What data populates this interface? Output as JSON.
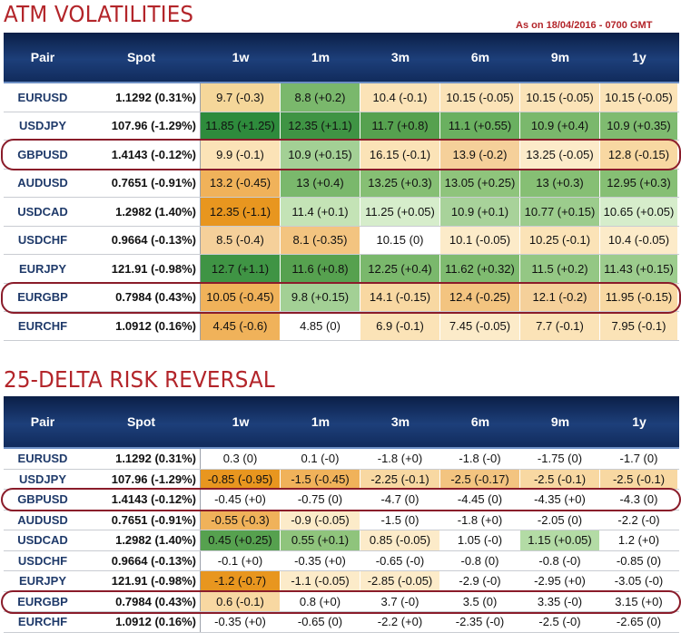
{
  "chart_data": [
    {
      "type": "table",
      "title": "ATM VOLATILITIES",
      "subtitle": "As on 18/04/2016 - 0700 GMT",
      "columns": [
        "Pair",
        "Spot",
        "1w",
        "1m",
        "3m",
        "6m",
        "9m",
        "1y"
      ],
      "highlighted_rows": [
        "GBPUSD",
        "EURGBP"
      ],
      "rows": [
        {
          "pair": "EURUSD",
          "spot": "1.1292 (0.31%)",
          "cells": [
            {
              "text": "9.7 (-0.3)",
              "color": "#f5d79a"
            },
            {
              "text": "8.8 (+0.2)",
              "color": "#7ab86c"
            },
            {
              "text": "10.4 (-0.1)",
              "color": "#fbe3b7"
            },
            {
              "text": "10.15 (-0.05)",
              "color": "#fbe3b7"
            },
            {
              "text": "10.15 (-0.05)",
              "color": "#fbe3b7"
            },
            {
              "text": "10.15 (-0.05)",
              "color": "#fbe3b7"
            }
          ]
        },
        {
          "pair": "USDJPY",
          "spot": "107.96 (-1.29%)",
          "cells": [
            {
              "text": "11.85 (+1.25)",
              "color": "#2e8b3c"
            },
            {
              "text": "12.35 (+1.1)",
              "color": "#3f9444"
            },
            {
              "text": "11.7 (+0.8)",
              "color": "#56a14f"
            },
            {
              "text": "11.1 (+0.55)",
              "color": "#6ab060"
            },
            {
              "text": "10.9 (+0.4)",
              "color": "#7ab86c"
            },
            {
              "text": "10.9 (+0.35)",
              "color": "#7fbb70"
            }
          ]
        },
        {
          "pair": "GBPUSD",
          "spot": "1.4143 (-0.12%)",
          "cells": [
            {
              "text": "9.9 (-0.1)",
              "color": "#fbe3b7"
            },
            {
              "text": "10.9 (+0.15)",
              "color": "#a3d095"
            },
            {
              "text": "16.15 (-0.1)",
              "color": "#fbe3b7"
            },
            {
              "text": "13.9 (-0.2)",
              "color": "#f5d09a"
            },
            {
              "text": "13.25 (-0.05)",
              "color": "#fcebc9"
            },
            {
              "text": "12.8 (-0.15)",
              "color": "#f8d8a2"
            }
          ]
        },
        {
          "pair": "AUDUSD",
          "spot": "0.7651 (-0.91%)",
          "cells": [
            {
              "text": "13.2 (-0.45)",
              "color": "#f0b25a"
            },
            {
              "text": "13 (+0.4)",
              "color": "#7ab86c"
            },
            {
              "text": "13.25 (+0.3)",
              "color": "#86bf74"
            },
            {
              "text": "13.05 (+0.25)",
              "color": "#8fc47c"
            },
            {
              "text": "13 (+0.3)",
              "color": "#86bf74"
            },
            {
              "text": "12.95 (+0.3)",
              "color": "#86bf74"
            }
          ]
        },
        {
          "pair": "USDCAD",
          "spot": "1.2982 (1.40%)",
          "cells": [
            {
              "text": "12.35 (-1.1)",
              "color": "#e8961f"
            },
            {
              "text": "11.4 (+0.1)",
              "color": "#c4e3b6"
            },
            {
              "text": "11.25 (+0.05)",
              "color": "#d6edcb"
            },
            {
              "text": "10.9 (+0.1)",
              "color": "#a8d29a"
            },
            {
              "text": "10.77 (+0.15)",
              "color": "#9ccc8d"
            },
            {
              "text": "10.65 (+0.05)",
              "color": "#d6edcb"
            }
          ]
        },
        {
          "pair": "USDCHF",
          "spot": "0.9664 (-0.13%)",
          "cells": [
            {
              "text": "8.5 (-0.4)",
              "color": "#f5d09a"
            },
            {
              "text": "8.1 (-0.35)",
              "color": "#f3c480"
            },
            {
              "text": "10.15 (0)",
              "color": "#ffffff"
            },
            {
              "text": "10.1 (-0.05)",
              "color": "#fcebc9"
            },
            {
              "text": "10.25 (-0.1)",
              "color": "#fbe3b7"
            },
            {
              "text": "10.4 (-0.05)",
              "color": "#fcebc9"
            }
          ]
        },
        {
          "pair": "EURJPY",
          "spot": "121.91 (-0.98%)",
          "cells": [
            {
              "text": "12.7 (+1.1)",
              "color": "#3f9444"
            },
            {
              "text": "11.6 (+0.8)",
              "color": "#56a14f"
            },
            {
              "text": "12.25 (+0.4)",
              "color": "#7ab86c"
            },
            {
              "text": "11.62 (+0.32)",
              "color": "#7fbb70"
            },
            {
              "text": "11.5 (+0.2)",
              "color": "#94c784"
            },
            {
              "text": "11.43 (+0.15)",
              "color": "#9ccc8d"
            }
          ]
        },
        {
          "pair": "EURGBP",
          "spot": "0.7984 (0.43%)",
          "cells": [
            {
              "text": "10.05 (-0.45)",
              "color": "#f0b25a"
            },
            {
              "text": "9.8 (+0.15)",
              "color": "#a3d095"
            },
            {
              "text": "14.1 (-0.15)",
              "color": "#f8d8a2"
            },
            {
              "text": "12.4 (-0.25)",
              "color": "#f3c480"
            },
            {
              "text": "12.1 (-0.2)",
              "color": "#f5d09a"
            },
            {
              "text": "11.95 (-0.15)",
              "color": "#f8d8a2"
            }
          ]
        },
        {
          "pair": "EURCHF",
          "spot": "1.0912 (0.16%)",
          "cells": [
            {
              "text": "4.45 (-0.6)",
              "color": "#f0b25a"
            },
            {
              "text": "4.85 (0)",
              "color": "#ffffff"
            },
            {
              "text": "6.9 (-0.1)",
              "color": "#fbe3b7"
            },
            {
              "text": "7.45 (-0.05)",
              "color": "#fcebc9"
            },
            {
              "text": "7.7 (-0.1)",
              "color": "#fbe3b7"
            },
            {
              "text": "7.95 (-0.1)",
              "color": "#fbe3b7"
            }
          ]
        }
      ]
    },
    {
      "type": "table",
      "title": "25-DELTA RISK REVERSAL",
      "columns": [
        "Pair",
        "Spot",
        "1w",
        "1m",
        "3m",
        "6m",
        "9m",
        "1y"
      ],
      "highlighted_rows": [
        "GBPUSD",
        "EURGBP"
      ],
      "rows": [
        {
          "pair": "EURUSD",
          "spot": "1.1292 (0.31%)",
          "cells": [
            {
              "text": "0.3 (0)",
              "color": "#ffffff"
            },
            {
              "text": "0.1 (-0)",
              "color": "#ffffff"
            },
            {
              "text": "-1.8 (+0)",
              "color": "#ffffff"
            },
            {
              "text": "-1.8 (-0)",
              "color": "#ffffff"
            },
            {
              "text": "-1.75 (0)",
              "color": "#ffffff"
            },
            {
              "text": "-1.7 (0)",
              "color": "#ffffff"
            }
          ]
        },
        {
          "pair": "USDJPY",
          "spot": "107.96 (-1.29%)",
          "cells": [
            {
              "text": "-0.85 (-0.95)",
              "color": "#e8961f"
            },
            {
              "text": "-1.5 (-0.45)",
              "color": "#f0b25a"
            },
            {
              "text": "-2.25 (-0.1)",
              "color": "#f8d8a2"
            },
            {
              "text": "-2.5 (-0.17)",
              "color": "#f3c480"
            },
            {
              "text": "-2.5 (-0.1)",
              "color": "#f8d8a2"
            },
            {
              "text": "-2.5 (-0.1)",
              "color": "#f8d8a2"
            }
          ]
        },
        {
          "pair": "GBPUSD",
          "spot": "1.4143 (-0.12%)",
          "cells": [
            {
              "text": "-0.45 (+0)",
              "color": "#ffffff"
            },
            {
              "text": "-0.75 (0)",
              "color": "#ffffff"
            },
            {
              "text": "-4.7 (0)",
              "color": "#ffffff"
            },
            {
              "text": "-4.45 (0)",
              "color": "#ffffff"
            },
            {
              "text": "-4.35 (+0)",
              "color": "#ffffff"
            },
            {
              "text": "-4.3 (0)",
              "color": "#ffffff"
            }
          ]
        },
        {
          "pair": "AUDUSD",
          "spot": "0.7651 (-0.91%)",
          "cells": [
            {
              "text": "-0.55 (-0.3)",
              "color": "#f0b25a"
            },
            {
              "text": "-0.9 (-0.05)",
              "color": "#fcebc9"
            },
            {
              "text": "-1.5 (0)",
              "color": "#ffffff"
            },
            {
              "text": "-1.8 (+0)",
              "color": "#ffffff"
            },
            {
              "text": "-2.05 (0)",
              "color": "#ffffff"
            },
            {
              "text": "-2.2 (-0)",
              "color": "#ffffff"
            }
          ]
        },
        {
          "pair": "USDCAD",
          "spot": "1.2982 (1.40%)",
          "cells": [
            {
              "text": "0.45 (+0.25)",
              "color": "#56a14f"
            },
            {
              "text": "0.55 (+0.1)",
              "color": "#8fc47c"
            },
            {
              "text": "0.85 (-0.05)",
              "color": "#fcebc9"
            },
            {
              "text": "1.05 (-0)",
              "color": "#ffffff"
            },
            {
              "text": "1.15 (+0.05)",
              "color": "#b3dba5"
            },
            {
              "text": "1.2 (+0)",
              "color": "#ffffff"
            }
          ]
        },
        {
          "pair": "USDCHF",
          "spot": "0.9664 (-0.13%)",
          "cells": [
            {
              "text": "-0.1 (+0)",
              "color": "#ffffff"
            },
            {
              "text": "-0.35 (+0)",
              "color": "#ffffff"
            },
            {
              "text": "-0.65 (-0)",
              "color": "#ffffff"
            },
            {
              "text": "-0.8 (0)",
              "color": "#ffffff"
            },
            {
              "text": "-0.8 (-0)",
              "color": "#ffffff"
            },
            {
              "text": "-0.85 (0)",
              "color": "#ffffff"
            }
          ]
        },
        {
          "pair": "EURJPY",
          "spot": "121.91 (-0.98%)",
          "cells": [
            {
              "text": "-1.2 (-0.7)",
              "color": "#e8961f"
            },
            {
              "text": "-1.1 (-0.05)",
              "color": "#fcebc9"
            },
            {
              "text": "-2.85 (-0.05)",
              "color": "#fcebc9"
            },
            {
              "text": "-2.9 (-0)",
              "color": "#ffffff"
            },
            {
              "text": "-2.95 (+0)",
              "color": "#ffffff"
            },
            {
              "text": "-3.05 (-0)",
              "color": "#ffffff"
            }
          ]
        },
        {
          "pair": "EURGBP",
          "spot": "0.7984 (0.43%)",
          "cells": [
            {
              "text": "0.6 (-0.1)",
              "color": "#f8d8a2"
            },
            {
              "text": "0.8 (+0)",
              "color": "#ffffff"
            },
            {
              "text": "3.7 (-0)",
              "color": "#ffffff"
            },
            {
              "text": "3.5 (0)",
              "color": "#ffffff"
            },
            {
              "text": "3.35 (-0)",
              "color": "#ffffff"
            },
            {
              "text": "3.15 (+0)",
              "color": "#ffffff"
            }
          ]
        },
        {
          "pair": "EURCHF",
          "spot": "1.0912 (0.16%)",
          "cells": [
            {
              "text": "-0.35 (+0)",
              "color": "#ffffff"
            },
            {
              "text": "-0.65 (0)",
              "color": "#ffffff"
            },
            {
              "text": "-2.2 (+0)",
              "color": "#ffffff"
            },
            {
              "text": "-2.35 (-0)",
              "color": "#ffffff"
            },
            {
              "text": "-2.5 (-0)",
              "color": "#ffffff"
            },
            {
              "text": "-2.65 (0)",
              "color": "#ffffff"
            }
          ]
        }
      ]
    }
  ],
  "colors": {
    "title": "#b3252a",
    "header_bg": "#1d3f7a",
    "pair_text": "#1f3a6a",
    "highlight_border": "#8a1c2a"
  }
}
